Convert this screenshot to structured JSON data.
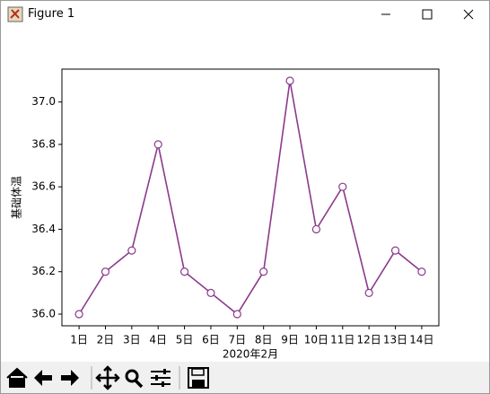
{
  "window": {
    "title": "Figure 1"
  },
  "chart_data": {
    "type": "line",
    "xlabel": "2020年2月",
    "ylabel": "基础体温",
    "categories": [
      "1日",
      "2日",
      "3日",
      "4日",
      "5日",
      "6日",
      "7日",
      "8日",
      "9日",
      "10日",
      "11日",
      "12日",
      "13日",
      "14日"
    ],
    "series": [
      {
        "color": "#8b3a8b",
        "marker_face": "#ffffff",
        "values": [
          36.0,
          36.2,
          36.3,
          36.8,
          36.2,
          36.1,
          36.0,
          36.2,
          37.1,
          36.4,
          36.6,
          36.1,
          36.3,
          36.2
        ]
      }
    ],
    "ylim": [
      35.945,
      37.155
    ],
    "yticks": [
      {
        "value": 36,
        "label": "36.0"
      },
      36.2,
      36.4,
      36.6,
      36.8,
      {
        "value": 37,
        "label": "37.0"
      }
    ],
    "grid": false
  }
}
